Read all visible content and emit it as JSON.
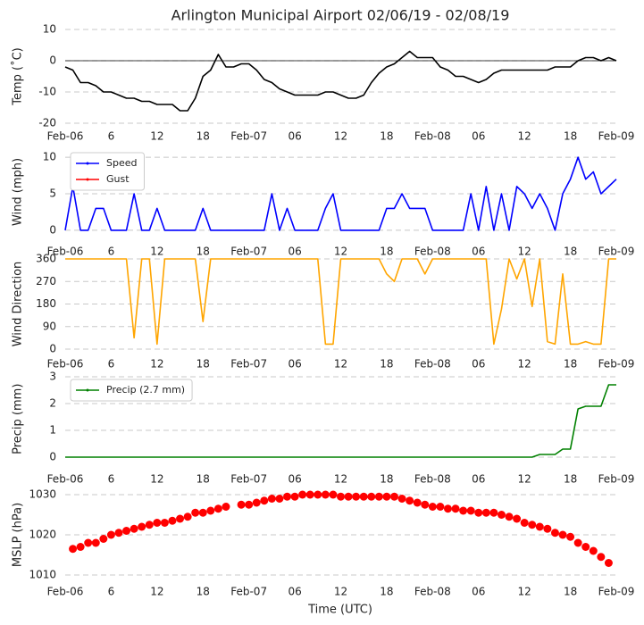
{
  "chart_data": [
    {
      "type": "line",
      "title": "Arlington Municipal Airport 02/06/19 - 02/08/19",
      "ylabel": "Temp (˚C)",
      "ylim": [
        -20,
        10
      ],
      "yticks": [
        -20,
        -10,
        0,
        10
      ],
      "grid": true,
      "zero_line": true,
      "xlim": [
        0,
        72
      ],
      "xticks": [
        {
          "value": 0,
          "label": "Feb-06"
        },
        6,
        12,
        18,
        {
          "value": 24,
          "label": "Feb-07"
        },
        {
          "value": 30,
          "label": "06"
        },
        {
          "value": 36,
          "label": "12"
        },
        {
          "value": 42,
          "label": "18"
        },
        {
          "value": 48,
          "label": "Feb-08"
        },
        {
          "value": 54,
          "label": "06"
        },
        {
          "value": 60,
          "label": "12"
        },
        {
          "value": 66,
          "label": "18"
        },
        {
          "value": 72,
          "label": "Feb-09"
        }
      ],
      "x": [
        0,
        1,
        2,
        3,
        4,
        5,
        6,
        7,
        8,
        9,
        10,
        11,
        12,
        13,
        14,
        15,
        16,
        17,
        18,
        19,
        20,
        21,
        22,
        23,
        24,
        25,
        26,
        27,
        28,
        29,
        30,
        31,
        32,
        33,
        34,
        35,
        36,
        37,
        38,
        39,
        40,
        41,
        42,
        43,
        44,
        45,
        46,
        47,
        48,
        49,
        50,
        51,
        52,
        53,
        54,
        55,
        56,
        57,
        58,
        59,
        60,
        61,
        62,
        63,
        64,
        65,
        66,
        67,
        68,
        69,
        70,
        71,
        72
      ],
      "series": [
        {
          "name": "Temp",
          "color": "#000000",
          "values": [
            -2,
            -3,
            -7,
            -7,
            -8,
            -10,
            -10,
            -11,
            -12,
            -12,
            -13,
            -13,
            -14,
            -14,
            -14,
            -16,
            -16,
            -12,
            -5,
            -3,
            2,
            -2,
            -2,
            -1,
            -1,
            -3,
            -6,
            -7,
            -9,
            -10,
            -11,
            -11,
            -11,
            -11,
            -10,
            -10,
            -11,
            -12,
            -12,
            -11,
            -7,
            -4,
            -2,
            -1,
            1,
            3,
            1,
            1,
            1,
            -2,
            -3,
            -5,
            -5,
            -6,
            -7,
            -6,
            -4,
            -3,
            -3,
            -3,
            -3,
            -3,
            -3,
            -3,
            -2,
            -2,
            -2,
            0,
            1,
            1,
            0,
            1,
            0
          ]
        }
      ]
    },
    {
      "type": "line",
      "ylabel": "Wind (mph)",
      "ylim": [
        -0.5,
        11
      ],
      "yticks": [
        0,
        5,
        10
      ],
      "grid": true,
      "legend": "upper left",
      "xlim": [
        0,
        72
      ],
      "xticks": [
        {
          "value": 0,
          "label": "Feb-06"
        },
        6,
        12,
        18,
        {
          "value": 24,
          "label": "Feb-07"
        },
        {
          "value": 30,
          "label": "06"
        },
        {
          "value": 36,
          "label": "12"
        },
        {
          "value": 42,
          "label": "18"
        },
        {
          "value": 48,
          "label": "Feb-08"
        },
        {
          "value": 54,
          "label": "06"
        },
        {
          "value": 60,
          "label": "12"
        },
        {
          "value": 66,
          "label": "18"
        },
        {
          "value": 72,
          "label": "Feb-09"
        }
      ],
      "x": [
        0,
        1,
        2,
        3,
        4,
        5,
        6,
        7,
        8,
        9,
        10,
        11,
        12,
        13,
        14,
        15,
        16,
        17,
        18,
        19,
        20,
        21,
        22,
        23,
        24,
        25,
        26,
        27,
        28,
        29,
        30,
        31,
        32,
        33,
        34,
        35,
        36,
        37,
        38,
        39,
        40,
        41,
        42,
        43,
        44,
        45,
        46,
        47,
        48,
        49,
        50,
        51,
        52,
        53,
        54,
        55,
        56,
        57,
        58,
        59,
        60,
        61,
        62,
        63,
        64,
        65,
        66,
        67,
        68,
        69,
        70,
        71,
        72
      ],
      "series": [
        {
          "name": "Speed",
          "color": "#0000ff",
          "values": [
            0,
            6,
            0,
            0,
            3,
            3,
            0,
            0,
            0,
            5,
            0,
            0,
            3,
            0,
            0,
            0,
            0,
            0,
            3,
            0,
            0,
            0,
            0,
            0,
            0,
            0,
            0,
            5,
            0,
            3,
            0,
            0,
            0,
            0,
            3,
            5,
            0,
            0,
            0,
            0,
            0,
            0,
            3,
            3,
            5,
            3,
            3,
            3,
            0,
            0,
            0,
            0,
            0,
            5,
            0,
            6,
            0,
            5,
            0,
            6,
            5,
            3,
            5,
            3,
            0,
            5,
            7,
            10,
            7,
            8,
            5,
            6,
            7
          ]
        },
        {
          "name": "Gust",
          "color": "#ff0000",
          "values": [
            null,
            null,
            null,
            null,
            null,
            null,
            null,
            null,
            null,
            null,
            null,
            null,
            null,
            null,
            null,
            null,
            null,
            null,
            null,
            null,
            null,
            null,
            null,
            null,
            null,
            null,
            null,
            null,
            null,
            null,
            null,
            null,
            null,
            null,
            null,
            null,
            null,
            null,
            null,
            null,
            null,
            null,
            null,
            null,
            null,
            null,
            null,
            null,
            null,
            null,
            null,
            null,
            null,
            null,
            null,
            null,
            null,
            null,
            null,
            null,
            null,
            null,
            null,
            null,
            null,
            null,
            null,
            null,
            null,
            null,
            null,
            null,
            null
          ]
        }
      ]
    },
    {
      "type": "line",
      "ylabel": "Wind Direction",
      "ylim": [
        0,
        360
      ],
      "yticks": [
        0,
        90,
        180,
        270,
        360
      ],
      "grid": true,
      "xlim": [
        0,
        72
      ],
      "xticks": [
        {
          "value": 0,
          "label": "Feb-06"
        },
        6,
        12,
        18,
        {
          "value": 24,
          "label": "Feb-07"
        },
        {
          "value": 30,
          "label": "06"
        },
        {
          "value": 36,
          "label": "12"
        },
        {
          "value": 42,
          "label": "18"
        },
        {
          "value": 48,
          "label": "Feb-08"
        },
        {
          "value": 54,
          "label": "06"
        },
        {
          "value": 60,
          "label": "12"
        },
        {
          "value": 66,
          "label": "18"
        },
        {
          "value": 72,
          "label": "Feb-09"
        }
      ],
      "x": [
        0,
        1,
        2,
        3,
        4,
        5,
        6,
        7,
        8,
        9,
        10,
        11,
        12,
        13,
        14,
        15,
        16,
        17,
        18,
        19,
        20,
        21,
        22,
        23,
        24,
        25,
        26,
        27,
        28,
        29,
        30,
        31,
        32,
        33,
        34,
        35,
        36,
        37,
        38,
        39,
        40,
        41,
        42,
        43,
        44,
        45,
        46,
        47,
        48,
        49,
        50,
        51,
        52,
        53,
        54,
        55,
        56,
        57,
        58,
        59,
        60,
        61,
        62,
        63,
        64,
        65,
        66,
        67,
        68,
        69,
        70,
        71,
        72
      ],
      "series": [
        {
          "name": "Direction",
          "color": "#ffa500",
          "values": [
            360,
            360,
            360,
            360,
            360,
            360,
            360,
            360,
            360,
            45,
            360,
            360,
            20,
            360,
            360,
            360,
            360,
            360,
            110,
            360,
            360,
            360,
            360,
            360,
            360,
            360,
            360,
            360,
            360,
            360,
            360,
            360,
            360,
            360,
            20,
            20,
            360,
            360,
            360,
            360,
            360,
            360,
            300,
            270,
            360,
            360,
            360,
            300,
            360,
            360,
            360,
            360,
            360,
            360,
            360,
            360,
            20,
            160,
            360,
            280,
            360,
            170,
            360,
            30,
            20,
            300,
            20,
            20,
            30,
            20,
            20,
            360,
            360
          ]
        }
      ]
    },
    {
      "type": "line",
      "ylabel": "Precip (mm)",
      "ylim": [
        -0.15,
        3
      ],
      "yticks": [
        0,
        1,
        2,
        3
      ],
      "grid": true,
      "legend": "upper left",
      "xlim": [
        0,
        72
      ],
      "xticks": [
        {
          "value": 0,
          "label": "Feb-06"
        },
        6,
        12,
        18,
        {
          "value": 24,
          "label": "Feb-07"
        },
        {
          "value": 30,
          "label": "06"
        },
        {
          "value": 36,
          "label": "12"
        },
        {
          "value": 42,
          "label": "18"
        },
        {
          "value": 48,
          "label": "Feb-08"
        },
        {
          "value": 54,
          "label": "06"
        },
        {
          "value": 60,
          "label": "12"
        },
        {
          "value": 66,
          "label": "18"
        },
        {
          "value": 72,
          "label": "Feb-09"
        }
      ],
      "x": [
        0,
        1,
        2,
        3,
        4,
        5,
        6,
        7,
        8,
        9,
        10,
        11,
        12,
        13,
        14,
        15,
        16,
        17,
        18,
        19,
        20,
        21,
        22,
        23,
        24,
        25,
        26,
        27,
        28,
        29,
        30,
        31,
        32,
        33,
        34,
        35,
        36,
        37,
        38,
        39,
        40,
        41,
        42,
        43,
        44,
        45,
        46,
        47,
        48,
        49,
        50,
        51,
        52,
        53,
        54,
        55,
        56,
        57,
        58,
        59,
        60,
        61,
        62,
        63,
        64,
        65,
        66,
        67,
        68,
        69,
        70,
        71,
        72
      ],
      "series": [
        {
          "name": "Precip (2.7 mm)",
          "color": "#008000",
          "values": [
            0,
            0,
            0,
            0,
            0,
            0,
            0,
            0,
            0,
            0,
            0,
            0,
            0,
            0,
            0,
            0,
            0,
            0,
            0,
            0,
            0,
            0,
            0,
            0,
            0,
            0,
            0,
            0,
            0,
            0,
            0,
            0,
            0,
            0,
            0,
            0,
            0,
            0,
            0,
            0,
            0,
            0,
            0,
            0,
            0,
            0,
            0,
            0,
            0,
            0,
            0,
            0,
            0,
            0,
            0,
            0,
            0,
            0,
            0,
            0,
            0,
            0,
            0.1,
            0.1,
            0.1,
            0.3,
            0.3,
            1.8,
            1.9,
            1.9,
            1.9,
            2.7,
            2.7
          ]
        }
      ]
    },
    {
      "type": "scatter",
      "ylabel": "MSLP (hPa)",
      "xlabel": "Time (UTC)",
      "ylim": [
        1008,
        1032
      ],
      "yticks": [
        1010,
        1020,
        1030
      ],
      "grid": true,
      "xlim": [
        0,
        72
      ],
      "xticks": [
        {
          "value": 0,
          "label": "Feb-06"
        },
        6,
        12,
        18,
        {
          "value": 24,
          "label": "Feb-07"
        },
        {
          "value": 30,
          "label": "06"
        },
        {
          "value": 36,
          "label": "12"
        },
        {
          "value": 42,
          "label": "18"
        },
        {
          "value": 48,
          "label": "Feb-08"
        },
        {
          "value": 54,
          "label": "06"
        },
        {
          "value": 60,
          "label": "12"
        },
        {
          "value": 66,
          "label": "18"
        },
        {
          "value": 72,
          "label": "Feb-09"
        }
      ],
      "x": [
        1,
        2,
        3,
        4,
        5,
        6,
        7,
        8,
        9,
        10,
        11,
        12,
        13,
        14,
        15,
        16,
        17,
        18,
        19,
        20,
        21,
        23,
        24,
        25,
        26,
        27,
        28,
        29,
        30,
        31,
        32,
        33,
        34,
        35,
        36,
        37,
        38,
        39,
        40,
        41,
        42,
        43,
        44,
        45,
        46,
        47,
        48,
        49,
        50,
        51,
        52,
        53,
        54,
        55,
        56,
        57,
        58,
        59,
        60,
        61,
        62,
        63,
        64,
        65,
        66,
        67,
        68,
        69,
        70,
        71
      ],
      "series": [
        {
          "name": "MSLP",
          "color": "#ff0000",
          "values": [
            1016.5,
            1017,
            1018,
            1018,
            1019,
            1020,
            1020.5,
            1021,
            1021.5,
            1022,
            1022.5,
            1023,
            1023,
            1023.5,
            1024,
            1024.5,
            1025.5,
            1025.5,
            1026,
            1026.5,
            1027,
            1027.5,
            1027.5,
            1028,
            1028.5,
            1029,
            1029,
            1029.5,
            1029.5,
            1030,
            1030,
            1030,
            1030,
            1030,
            1029.5,
            1029.5,
            1029.5,
            1029.5,
            1029.5,
            1029.5,
            1029.5,
            1029.5,
            1029,
            1028.5,
            1028,
            1027.5,
            1027,
            1027,
            1026.5,
            1026.5,
            1026,
            1026,
            1025.5,
            1025.5,
            1025.5,
            1025,
            1024.5,
            1024,
            1023,
            1022.5,
            1022,
            1021.5,
            1020.5,
            1020,
            1019.5,
            1018,
            1017,
            1016,
            1014.5,
            1013
          ]
        }
      ]
    }
  ]
}
